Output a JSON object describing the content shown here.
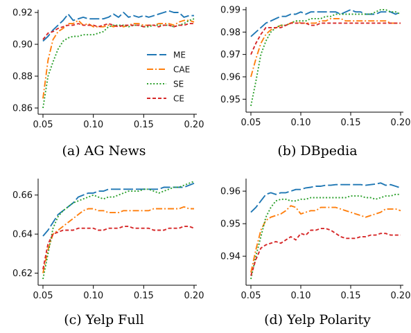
{
  "legend": {
    "placement": "right (inside panel a)",
    "entries": [
      {
        "name": "ME",
        "color": "#1f77b4",
        "dash": "dashed"
      },
      {
        "name": "CAE",
        "color": "#ff7f0e",
        "dash": "dashdot"
      },
      {
        "name": "SE",
        "color": "#2ca02c",
        "dash": "dotted"
      },
      {
        "name": "CE",
        "color": "#d62728",
        "dash": "dashed-short"
      }
    ]
  },
  "chart_data": [
    {
      "type": "line",
      "caption": "(a) AG News",
      "xlim": [
        0.05,
        0.2
      ],
      "ylim": [
        0.86,
        0.92
      ],
      "xticks": [
        0.05,
        0.1,
        0.15,
        0.2
      ],
      "xtick_labels": [
        "0.05",
        "0.10",
        "0.15",
        "0.20"
      ],
      "yticks": [
        0.86,
        0.88,
        0.9,
        0.92
      ],
      "ytick_labels": [
        "0.86",
        "0.88",
        "0.90",
        "0.92"
      ],
      "grid": false,
      "x": [
        0.05,
        0.055,
        0.06,
        0.065,
        0.07,
        0.075,
        0.08,
        0.085,
        0.09,
        0.095,
        0.1,
        0.105,
        0.11,
        0.115,
        0.12,
        0.125,
        0.13,
        0.135,
        0.14,
        0.145,
        0.15,
        0.155,
        0.16,
        0.165,
        0.17,
        0.175,
        0.18,
        0.185,
        0.19,
        0.195,
        0.2
      ],
      "series": [
        {
          "name": "ME",
          "values": [
            0.902,
            0.905,
            0.909,
            0.912,
            0.915,
            0.919,
            0.915,
            0.916,
            0.917,
            0.916,
            0.916,
            0.916,
            0.916,
            0.917,
            0.919,
            0.917,
            0.92,
            0.917,
            0.918,
            0.917,
            0.918,
            0.917,
            0.918,
            0.919,
            0.92,
            0.921,
            0.92,
            0.92,
            0.917,
            0.918,
            0.918
          ]
        },
        {
          "name": "CAE",
          "values": [
            0.866,
            0.89,
            0.903,
            0.908,
            0.91,
            0.913,
            0.913,
            0.915,
            0.912,
            0.913,
            0.911,
            0.911,
            0.911,
            0.912,
            0.911,
            0.912,
            0.911,
            0.912,
            0.913,
            0.913,
            0.912,
            0.912,
            0.912,
            0.913,
            0.913,
            0.913,
            0.912,
            0.914,
            0.915,
            0.915,
            0.914
          ]
        },
        {
          "name": "SE",
          "values": [
            0.86,
            0.88,
            0.889,
            0.897,
            0.902,
            0.904,
            0.905,
            0.905,
            0.906,
            0.906,
            0.906,
            0.907,
            0.908,
            0.911,
            0.912,
            0.912,
            0.912,
            0.911,
            0.912,
            0.912,
            0.911,
            0.911,
            0.912,
            0.912,
            0.912,
            0.912,
            0.911,
            0.912,
            0.913,
            0.915,
            0.916
          ]
        },
        {
          "name": "CE",
          "values": [
            0.903,
            0.907,
            0.908,
            0.91,
            0.911,
            0.912,
            0.912,
            0.913,
            0.912,
            0.912,
            0.912,
            0.911,
            0.912,
            0.913,
            0.912,
            0.911,
            0.912,
            0.912,
            0.912,
            0.912,
            0.911,
            0.912,
            0.912,
            0.911,
            0.912,
            0.912,
            0.911,
            0.912,
            0.912,
            0.913,
            0.913
          ]
        }
      ]
    },
    {
      "type": "line",
      "caption": "(b) DBpedia",
      "xlim": [
        0.05,
        0.2
      ],
      "ylim": [
        0.947,
        0.99
      ],
      "xticks": [
        0.05,
        0.1,
        0.15,
        0.2
      ],
      "xtick_labels": [
        "0.05",
        "0.10",
        "0.15",
        "0.20"
      ],
      "yticks": [
        0.95,
        0.96,
        0.97,
        0.98,
        0.99
      ],
      "ytick_labels": [
        "0.95",
        "0.96",
        "0.97",
        "0.98",
        "0.99"
      ],
      "grid": false,
      "x": [
        0.05,
        0.055,
        0.06,
        0.065,
        0.07,
        0.075,
        0.08,
        0.085,
        0.09,
        0.095,
        0.1,
        0.105,
        0.11,
        0.115,
        0.12,
        0.125,
        0.13,
        0.135,
        0.14,
        0.145,
        0.15,
        0.155,
        0.16,
        0.165,
        0.17,
        0.175,
        0.18,
        0.185,
        0.19,
        0.195,
        0.2
      ],
      "series": [
        {
          "name": "ME",
          "values": [
            0.978,
            0.98,
            0.982,
            0.984,
            0.985,
            0.986,
            0.987,
            0.987,
            0.988,
            0.988,
            0.989,
            0.988,
            0.989,
            0.989,
            0.989,
            0.989,
            0.989,
            0.989,
            0.988,
            0.989,
            0.99,
            0.989,
            0.989,
            0.988,
            0.988,
            0.988,
            0.989,
            0.989,
            0.989,
            0.988,
            0.989
          ]
        },
        {
          "name": "CAE",
          "values": [
            0.96,
            0.968,
            0.975,
            0.979,
            0.981,
            0.982,
            0.983,
            0.983,
            0.984,
            0.985,
            0.984,
            0.984,
            0.984,
            0.984,
            0.985,
            0.985,
            0.986,
            0.986,
            0.986,
            0.985,
            0.985,
            0.985,
            0.985,
            0.985,
            0.985,
            0.985,
            0.985,
            0.985,
            0.984,
            0.984,
            0.984
          ]
        },
        {
          "name": "SE",
          "values": [
            0.947,
            0.958,
            0.97,
            0.976,
            0.98,
            0.982,
            0.983,
            0.983,
            0.984,
            0.985,
            0.985,
            0.985,
            0.986,
            0.986,
            0.986,
            0.987,
            0.987,
            0.988,
            0.988,
            0.988,
            0.988,
            0.988,
            0.988,
            0.988,
            0.988,
            0.989,
            0.99,
            0.99,
            0.989,
            0.989,
            0.988
          ]
        },
        {
          "name": "CE",
          "values": [
            0.97,
            0.975,
            0.979,
            0.982,
            0.982,
            0.982,
            0.982,
            0.983,
            0.984,
            0.984,
            0.984,
            0.984,
            0.983,
            0.983,
            0.984,
            0.984,
            0.984,
            0.984,
            0.984,
            0.984,
            0.984,
            0.984,
            0.984,
            0.984,
            0.984,
            0.984,
            0.984,
            0.984,
            0.984,
            0.984,
            0.984
          ]
        }
      ]
    },
    {
      "type": "line",
      "caption": "(c) Yelp Full",
      "xlim": [
        0.05,
        0.2
      ],
      "ylim": [
        0.617,
        0.667
      ],
      "xticks": [
        0.05,
        0.1,
        0.15,
        0.2
      ],
      "xtick_labels": [
        "0.05",
        "0.10",
        "0.15",
        "0.20"
      ],
      "yticks": [
        0.62,
        0.64,
        0.66
      ],
      "ytick_labels": [
        "0.62",
        "0.64",
        "0.66"
      ],
      "grid": false,
      "x": [
        0.05,
        0.055,
        0.06,
        0.065,
        0.07,
        0.075,
        0.08,
        0.085,
        0.09,
        0.095,
        0.1,
        0.105,
        0.11,
        0.115,
        0.12,
        0.125,
        0.13,
        0.135,
        0.14,
        0.145,
        0.15,
        0.155,
        0.16,
        0.165,
        0.17,
        0.175,
        0.18,
        0.185,
        0.19,
        0.195,
        0.2
      ],
      "series": [
        {
          "name": "ME",
          "values": [
            0.639,
            0.642,
            0.646,
            0.65,
            0.652,
            0.654,
            0.656,
            0.659,
            0.66,
            0.661,
            0.661,
            0.662,
            0.662,
            0.663,
            0.663,
            0.663,
            0.663,
            0.663,
            0.663,
            0.663,
            0.663,
            0.663,
            0.663,
            0.663,
            0.664,
            0.664,
            0.664,
            0.664,
            0.664,
            0.665,
            0.666
          ]
        },
        {
          "name": "CAE",
          "values": [
            0.62,
            0.632,
            0.64,
            0.642,
            0.644,
            0.646,
            0.648,
            0.65,
            0.652,
            0.653,
            0.653,
            0.652,
            0.652,
            0.651,
            0.651,
            0.651,
            0.652,
            0.652,
            0.652,
            0.652,
            0.652,
            0.652,
            0.653,
            0.653,
            0.653,
            0.653,
            0.653,
            0.653,
            0.654,
            0.653,
            0.653
          ]
        },
        {
          "name": "SE",
          "values": [
            0.617,
            0.63,
            0.643,
            0.649,
            0.652,
            0.654,
            0.656,
            0.657,
            0.658,
            0.659,
            0.66,
            0.659,
            0.658,
            0.659,
            0.659,
            0.66,
            0.661,
            0.662,
            0.662,
            0.662,
            0.663,
            0.663,
            0.662,
            0.661,
            0.662,
            0.663,
            0.664,
            0.664,
            0.665,
            0.666,
            0.667
          ]
        },
        {
          "name": "CE",
          "values": [
            0.622,
            0.635,
            0.64,
            0.641,
            0.642,
            0.642,
            0.642,
            0.643,
            0.643,
            0.643,
            0.643,
            0.642,
            0.642,
            0.643,
            0.643,
            0.643,
            0.644,
            0.644,
            0.643,
            0.643,
            0.643,
            0.643,
            0.642,
            0.642,
            0.642,
            0.643,
            0.643,
            0.643,
            0.644,
            0.644,
            0.643
          ]
        }
      ]
    },
    {
      "type": "line",
      "caption": "(d) Yelp Polarity",
      "xlim": [
        0.05,
        0.2
      ],
      "ylim": [
        0.933,
        0.963
      ],
      "xticks": [
        0.05,
        0.1,
        0.15,
        0.2
      ],
      "xtick_labels": [
        "0.05",
        "0.10",
        "0.15",
        "0.20"
      ],
      "yticks": [
        0.94,
        0.95,
        0.96
      ],
      "ytick_labels": [
        "0.94",
        "0.95",
        "0.96"
      ],
      "grid": false,
      "x": [
        0.05,
        0.055,
        0.06,
        0.065,
        0.07,
        0.075,
        0.08,
        0.085,
        0.09,
        0.095,
        0.1,
        0.105,
        0.11,
        0.115,
        0.12,
        0.125,
        0.13,
        0.135,
        0.14,
        0.145,
        0.15,
        0.155,
        0.16,
        0.165,
        0.17,
        0.175,
        0.18,
        0.185,
        0.19,
        0.195,
        0.2
      ],
      "series": [
        {
          "name": "ME",
          "values": [
            0.9535,
            0.955,
            0.957,
            0.959,
            0.9595,
            0.959,
            0.9595,
            0.9595,
            0.96,
            0.9605,
            0.9605,
            0.961,
            0.9612,
            0.9615,
            0.9615,
            0.9618,
            0.9618,
            0.962,
            0.962,
            0.962,
            0.962,
            0.962,
            0.962,
            0.9618,
            0.962,
            0.9622,
            0.9625,
            0.9618,
            0.962,
            0.9615,
            0.961
          ]
        },
        {
          "name": "CAE",
          "values": [
            0.935,
            0.942,
            0.948,
            0.951,
            0.952,
            0.9525,
            0.953,
            0.954,
            0.9555,
            0.955,
            0.953,
            0.9535,
            0.954,
            0.954,
            0.955,
            0.955,
            0.955,
            0.955,
            0.9545,
            0.954,
            0.9535,
            0.953,
            0.9525,
            0.952,
            0.9525,
            0.953,
            0.9535,
            0.9545,
            0.9545,
            0.9545,
            0.954
          ]
        },
        {
          "name": "SE",
          "values": [
            0.933,
            0.94,
            0.946,
            0.952,
            0.955,
            0.957,
            0.9575,
            0.9575,
            0.957,
            0.957,
            0.9575,
            0.9575,
            0.958,
            0.958,
            0.958,
            0.958,
            0.958,
            0.958,
            0.958,
            0.958,
            0.9585,
            0.9585,
            0.9585,
            0.958,
            0.958,
            0.9575,
            0.958,
            0.9585,
            0.9585,
            0.959,
            0.959
          ]
        },
        {
          "name": "CE",
          "values": [
            0.934,
            0.939,
            0.9425,
            0.9435,
            0.944,
            0.9445,
            0.944,
            0.945,
            0.946,
            0.945,
            0.947,
            0.9465,
            0.948,
            0.948,
            0.9485,
            0.9485,
            0.948,
            0.947,
            0.946,
            0.9455,
            0.9455,
            0.9455,
            0.946,
            0.946,
            0.9465,
            0.9465,
            0.947,
            0.947,
            0.9465,
            0.9465,
            0.9465
          ]
        }
      ]
    }
  ]
}
